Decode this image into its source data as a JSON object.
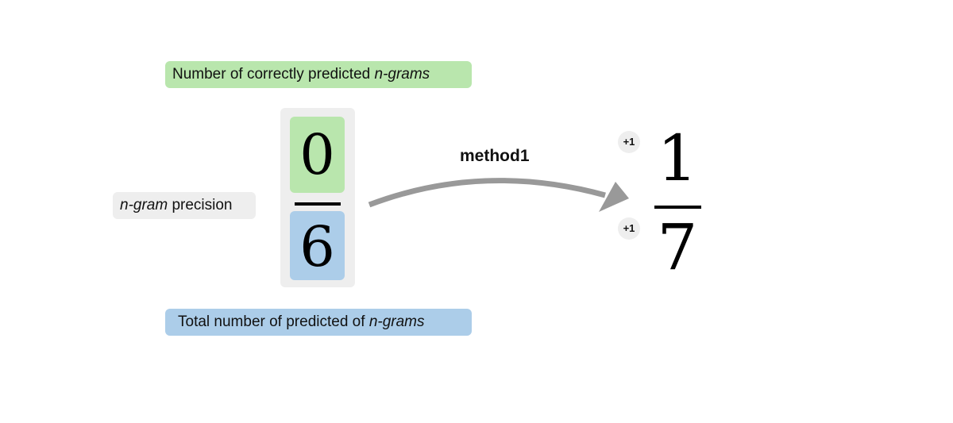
{
  "labels": {
    "top": {
      "text": "Number of correctly predicted ",
      "emphasis": "n-grams",
      "color": "#b9e6ad"
    },
    "bottom": {
      "text": "Total number of predicted of ",
      "emphasis": "n-grams",
      "color": "#accde9"
    },
    "left": {
      "emphasis": "n-gram",
      "text": " precision",
      "color": "#eeeeee"
    }
  },
  "fraction": {
    "numerator": "0",
    "denominator": "6"
  },
  "method": {
    "label": "method1",
    "arrow_color": "#999999"
  },
  "smoothing": {
    "numerator_badge": "+1",
    "denominator_badge": "+1"
  },
  "result": {
    "numerator": "1",
    "denominator": "7"
  }
}
